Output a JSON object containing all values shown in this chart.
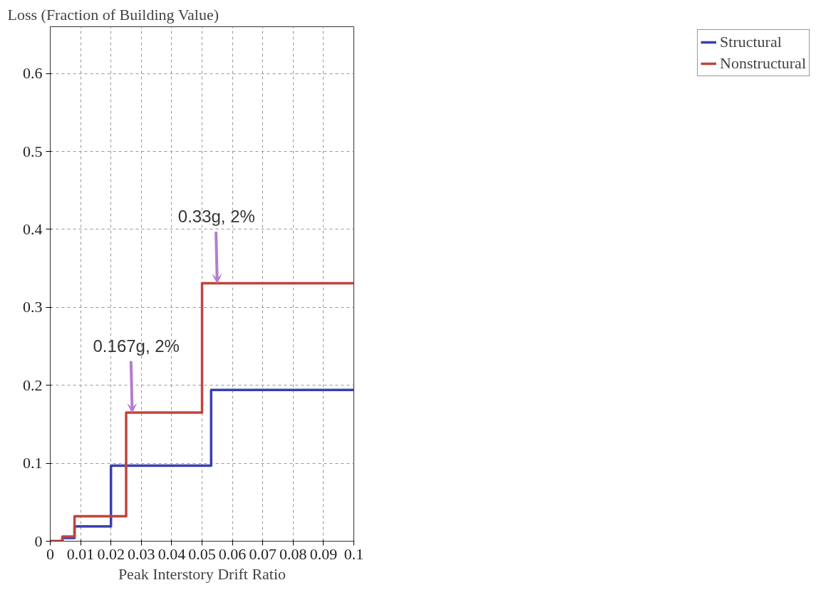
{
  "chart_data": {
    "type": "step",
    "xlabel": "Peak Interstory Drift Ratio",
    "ylabel": "Loss (Fraction of Building Value)",
    "xlim": [
      0,
      0.1
    ],
    "ylim": [
      0,
      0.66
    ],
    "xticks": [
      0,
      0.01,
      0.02,
      0.03,
      0.04,
      0.05,
      0.06,
      0.07,
      0.08,
      0.09,
      0.1
    ],
    "yticks": [
      0,
      0.1,
      0.2,
      0.3,
      0.4,
      0.5,
      0.6
    ],
    "grid": true,
    "legend": "right",
    "line_style": "solid",
    "marker": "none",
    "series": [
      {
        "name": "Structural",
        "color": "#3a3fb0",
        "x": [
          0,
          0.004,
          0.008,
          0.02,
          0.053,
          0.1
        ],
        "values": [
          0,
          0.004,
          0.019,
          0.097,
          0.194,
          0.194
        ]
      },
      {
        "name": "Nonstructural",
        "color": "#c0443c",
        "x": [
          0,
          0.004,
          0.008,
          0.025,
          0.05,
          0.1
        ],
        "values": [
          0,
          0.006,
          0.032,
          0.165,
          0.331,
          0.331
        ]
      }
    ],
    "annotations": [
      {
        "text": "0.167g, 2%",
        "x": 0.027,
        "y": 0.165
      },
      {
        "text": "0.33g, 2%",
        "x": 0.055,
        "y": 0.331
      }
    ]
  }
}
